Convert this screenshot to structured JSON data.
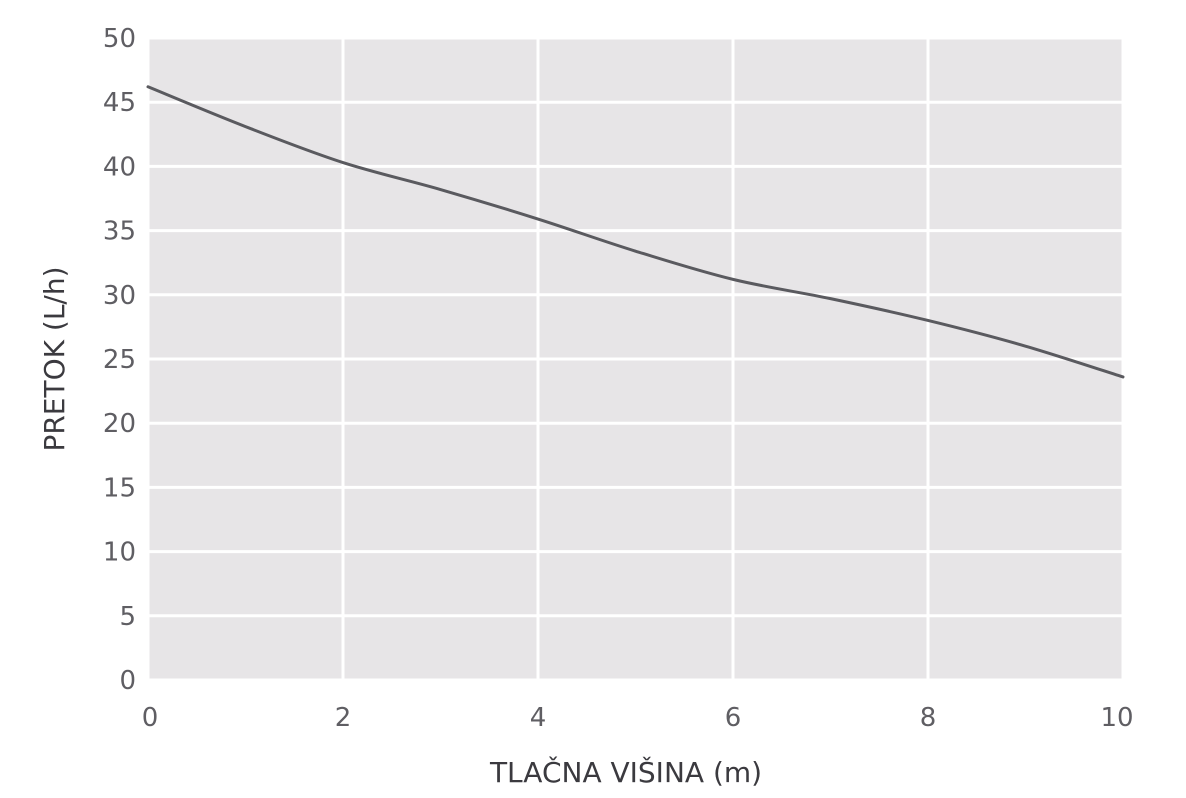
{
  "chart_data": {
    "type": "line",
    "title": "",
    "xlabel": "TLAČNA VIŠINA (m)",
    "ylabel": "PRETOK (L/h)",
    "xlim": [
      0,
      10
    ],
    "ylim": [
      0,
      50
    ],
    "x_ticks": [
      "0",
      "2",
      "4",
      "6",
      "8",
      "10"
    ],
    "y_ticks": [
      "0",
      "5",
      "10",
      "15",
      "20",
      "25",
      "30",
      "35",
      "40",
      "45",
      "50"
    ],
    "grid": true,
    "legend": "none",
    "series": [
      {
        "x": [
          0,
          1,
          2,
          3,
          4,
          5,
          6,
          7,
          8,
          9,
          10
        ],
        "y": [
          46.2,
          43.1,
          40.3,
          38.2,
          35.9,
          33.4,
          31.2,
          29.7,
          28.0,
          26.0,
          23.6
        ]
      }
    ],
    "colors": {
      "plot_background": "#e7e5e7",
      "grid": "#ffffff",
      "line": "#5a5a5f"
    }
  }
}
